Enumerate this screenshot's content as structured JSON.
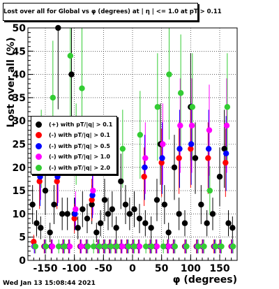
{
  "title": "Lost over all for Global vs φ (degrees) at | η | <= 1.0 at pT > 0.11",
  "footer": "Wed Jan 13 15:08:44 2021",
  "chart_data": {
    "type": "scatter",
    "title": "Lost over all for Global vs φ (degrees) at | η | <= 1.0 at pT > 0.11",
    "xlabel": "φ (degrees)",
    "ylabel": "Lost over all (%)",
    "xlim": [
      -180,
      180
    ],
    "ylim": [
      0,
      50
    ],
    "x_ticks": [
      -150,
      -100,
      -50,
      0,
      50,
      100,
      150
    ],
    "y_ticks": [
      0,
      5,
      10,
      15,
      20,
      25,
      30,
      35,
      40,
      45,
      50
    ],
    "grid": true,
    "legend_position": "left-middle",
    "series": [
      {
        "name": "(+) with pT/|q| > 0.1",
        "color": "#000000",
        "x": [
          -172,
          -165,
          -158,
          -150,
          -142,
          -135,
          -128,
          -121,
          -112,
          -105,
          -100,
          -94,
          -86,
          -78,
          -70,
          -62,
          -55,
          -48,
          -42,
          -35,
          -28,
          -20,
          -12,
          -5,
          3,
          12,
          22,
          32,
          42,
          48,
          55,
          62,
          72,
          80,
          90,
          100,
          108,
          118,
          128,
          138,
          150,
          158,
          165,
          172
        ],
        "y": [
          12,
          8,
          7,
          15,
          6,
          12,
          50,
          10,
          10,
          40,
          10,
          7,
          11,
          9,
          12,
          6,
          8,
          13,
          10,
          11,
          7,
          17,
          12,
          10,
          11,
          9,
          8,
          7,
          13,
          25,
          12,
          6,
          20,
          10,
          8,
          33,
          22,
          12,
          8,
          10,
          18,
          24,
          8,
          7
        ]
      },
      {
        "name": "(-) with pT/|q| > 0.1",
        "color": "#ff0000",
        "x": [
          -170,
          -160,
          -152,
          -140,
          -130,
          -120,
          -110,
          -100,
          -90,
          -80,
          -70,
          -60,
          -50,
          -40,
          -30,
          -20,
          -10,
          0,
          10,
          20,
          30,
          40,
          50,
          60,
          70,
          80,
          90,
          100,
          110,
          120,
          130,
          140,
          150,
          160,
          170
        ],
        "y": [
          4,
          17,
          3,
          3,
          17,
          3,
          3,
          9,
          3,
          3,
          13,
          3,
          3,
          3,
          3,
          3,
          3,
          3,
          3,
          18,
          3,
          3,
          21,
          3,
          3,
          22,
          3,
          24,
          3,
          3,
          22,
          3,
          3,
          21,
          3
        ]
      },
      {
        "name": "(-) with pT/|q| > 0.5",
        "color": "#0000ff",
        "x": [
          -169,
          -159,
          -151,
          -139,
          -129,
          -119,
          -109,
          -99,
          -89,
          -79,
          -69,
          -59,
          -49,
          -39,
          -29,
          -19,
          -9,
          1,
          11,
          21,
          31,
          41,
          51,
          61,
          71,
          81,
          91,
          101,
          111,
          121,
          131,
          141,
          151,
          161,
          171
        ],
        "y": [
          3,
          18,
          3,
          3,
          18,
          3,
          3,
          10,
          3,
          3,
          14,
          3,
          3,
          3,
          3,
          3,
          3,
          3,
          3,
          20,
          3,
          3,
          22,
          3,
          3,
          24,
          3,
          25,
          3,
          3,
          24,
          3,
          3,
          23,
          3
        ]
      },
      {
        "name": "(-) with pT/|q| > 1.0",
        "color": "#ff00ff",
        "x": [
          -168,
          -158,
          -150,
          -138,
          -128,
          -118,
          -108,
          -98,
          -88,
          -78,
          -68,
          -58,
          -48,
          -38,
          -28,
          -18,
          -8,
          2,
          12,
          22,
          32,
          42,
          52,
          62,
          72,
          82,
          92,
          102,
          112,
          122,
          132,
          142,
          152,
          162,
          172
        ],
        "y": [
          3,
          20,
          3,
          3,
          19,
          3,
          3,
          11,
          3,
          3,
          15,
          3,
          3,
          3,
          3,
          3,
          3,
          3,
          3,
          22,
          3,
          3,
          25,
          3,
          3,
          29,
          3,
          29,
          3,
          3,
          28,
          3,
          3,
          29,
          3
        ]
      },
      {
        "name": "(-) with pT/|q| > 2.0",
        "color": "#33cc33",
        "x": [
          -167,
          -157,
          -149,
          -137,
          -127,
          -117,
          -107,
          -97,
          -87,
          -77,
          -67,
          -57,
          -47,
          -37,
          -27,
          -17,
          -7,
          3,
          13,
          23,
          33,
          43,
          53,
          63,
          73,
          83,
          93,
          103,
          113,
          123,
          133,
          143,
          153,
          163,
          173
        ],
        "y": [
          3,
          24,
          3,
          35,
          3,
          3,
          44,
          25,
          37,
          3,
          3,
          3,
          3,
          3,
          3,
          24,
          3,
          3,
          27,
          3,
          3,
          33,
          3,
          40,
          3,
          36,
          3,
          33,
          3,
          3,
          15,
          3,
          3,
          33,
          3
        ]
      }
    ]
  }
}
